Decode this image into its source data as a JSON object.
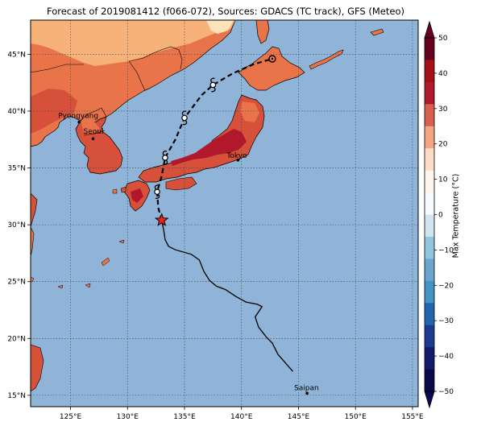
{
  "title": "Forecast of 2019081412 (f066-072), Sources: GDACS (TC track), GFS (Meteo)",
  "map": {
    "lon_ticks": [
      "125°E",
      "130°E",
      "135°E",
      "140°E",
      "145°E",
      "150°E",
      "155°E"
    ],
    "lat_ticks": [
      "45°N",
      "40°N",
      "35°N",
      "30°N",
      "25°N",
      "20°N",
      "15°N"
    ],
    "extent": {
      "lon": [
        121.5,
        155.5
      ],
      "lat": [
        14,
        48
      ]
    },
    "ocean_color": "#8fb4d8",
    "cities": [
      {
        "name": "Pyongyang",
        "lon": 125.75,
        "lat": 39.03
      },
      {
        "name": "Seoul",
        "lon": 126.98,
        "lat": 37.57
      },
      {
        "name": "Tokyo",
        "lon": 139.69,
        "lat": 35.69
      },
      {
        "name": "Saipan",
        "lon": 145.75,
        "lat": 15.18
      }
    ],
    "past_track": [
      [
        144.5,
        17.1
      ],
      [
        143.2,
        18.6
      ],
      [
        142.7,
        19.6
      ],
      [
        142.2,
        20.1
      ],
      [
        141.5,
        21.0
      ],
      [
        141.2,
        21.9
      ],
      [
        141.8,
        22.8
      ],
      [
        141.4,
        23.0
      ],
      [
        140.4,
        23.2
      ],
      [
        139.5,
        23.7
      ],
      [
        138.6,
        24.3
      ],
      [
        137.8,
        24.6
      ],
      [
        137.2,
        25.1
      ],
      [
        136.7,
        25.9
      ],
      [
        136.3,
        26.9
      ],
      [
        135.6,
        27.4
      ],
      [
        134.2,
        27.8
      ],
      [
        133.6,
        28.1
      ],
      [
        133.3,
        28.7
      ],
      [
        133.2,
        29.4
      ],
      [
        133.0,
        30.4
      ]
    ],
    "forecast_track": [
      [
        133.0,
        30.4
      ],
      [
        132.7,
        31.5
      ],
      [
        132.6,
        32.9
      ],
      [
        133.0,
        34.3
      ],
      [
        133.3,
        35.9
      ],
      [
        134.2,
        37.5
      ],
      [
        135.0,
        39.4
      ],
      [
        136.5,
        41.4
      ],
      [
        137.5,
        42.3
      ],
      [
        139.2,
        43.3
      ],
      [
        141.0,
        44.1
      ],
      [
        142.7,
        44.6
      ]
    ],
    "storm_position": {
      "lon": 133.0,
      "lat": 30.4
    },
    "forecast_points": [
      {
        "lon": 132.6,
        "lat": 32.9
      },
      {
        "lon": 133.3,
        "lat": 35.9
      },
      {
        "lon": 135.0,
        "lat": 39.4
      },
      {
        "lon": 137.5,
        "lat": 42.3
      },
      {
        "lon": 142.7,
        "lat": 44.6
      }
    ]
  },
  "colorbar": {
    "label": "Max Temperature (°C)",
    "ticks": [
      "50",
      "40",
      "30",
      "20",
      "10",
      "0",
      "−10",
      "−20",
      "−30",
      "−40",
      "−50"
    ],
    "colors": [
      "#67001f",
      "#a50f15",
      "#b2182b",
      "#d6604d",
      "#f4a582",
      "#fddbc7",
      "#fff5ec",
      "#f7fbff",
      "#d1e5f0",
      "#92c5de",
      "#6aa6d0",
      "#4393c3",
      "#2166ac",
      "#1c3b8f",
      "#131b6b",
      "#0a0a4a"
    ]
  }
}
